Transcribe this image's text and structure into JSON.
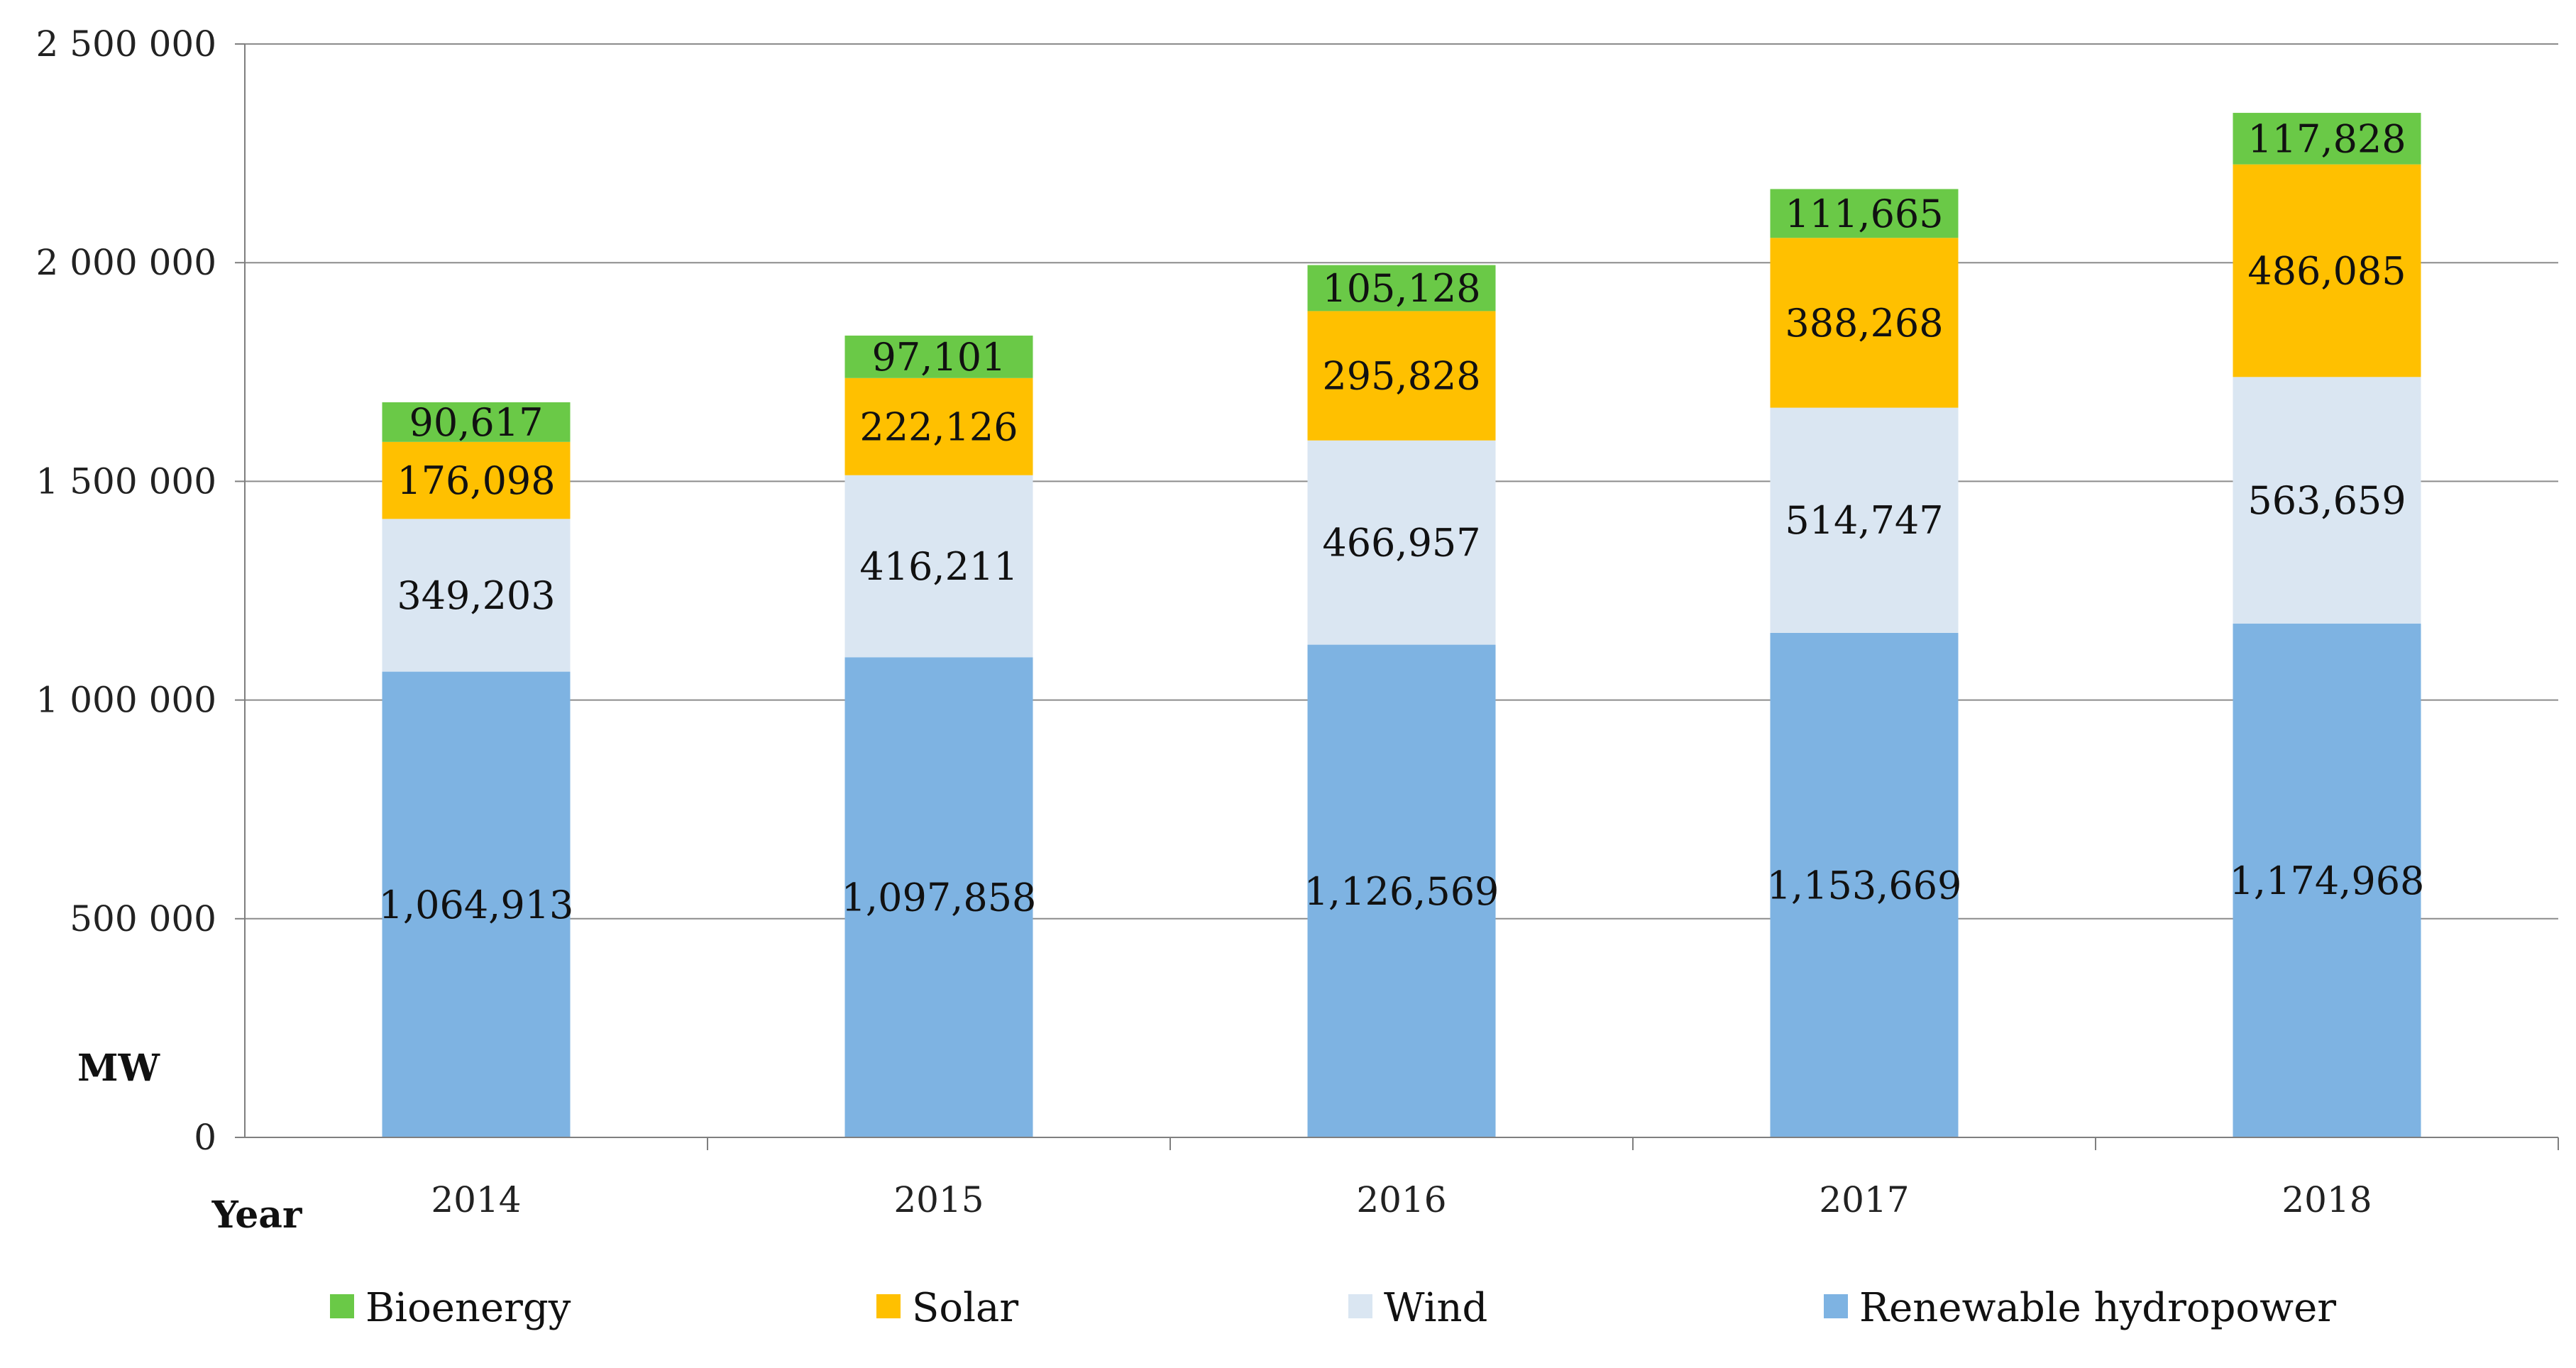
{
  "chart_data": {
    "type": "bar",
    "stacked": true,
    "title": "",
    "xlabel": "Year",
    "ylabel": "MW",
    "ylim": [
      0,
      2500000
    ],
    "yticks": [
      0,
      500000,
      1000000,
      1500000,
      2000000,
      2500000
    ],
    "ytick_labels": [
      "0",
      "500 000",
      "1 000 000",
      "1 500 000",
      "2 000 000",
      "2 500 000"
    ],
    "categories": [
      "2014",
      "2015",
      "2016",
      "2017",
      "2018"
    ],
    "series": [
      {
        "name": "Renewable hydropower",
        "color": "#7EB3E2",
        "values": [
          1064913,
          1097858,
          1126569,
          1153669,
          1174968
        ],
        "labels": [
          "1,064,913",
          "1,097,858",
          "1,126,569",
          "1,153,669",
          "1,174,968"
        ]
      },
      {
        "name": "Wind",
        "color": "#DAE6F2",
        "values": [
          349203,
          416211,
          466957,
          514747,
          563659
        ],
        "labels": [
          "349,203",
          "416,211",
          "466,957",
          "514,747",
          "563,659"
        ]
      },
      {
        "name": "Solar",
        "color": "#FFC000",
        "values": [
          176098,
          222126,
          295828,
          388268,
          486085
        ],
        "labels": [
          "176,098",
          "222,126",
          "295,828",
          "388,268",
          "486,085"
        ]
      },
      {
        "name": "Bioenergy",
        "color": "#6AC947",
        "values": [
          90617,
          97101,
          105128,
          111665,
          117828
        ],
        "labels": [
          "90,617",
          "97,101",
          "105,128",
          "111,665",
          "117,828"
        ]
      }
    ],
    "legend": {
      "position": "bottom",
      "order": [
        "Bioenergy",
        "Solar",
        "Wind",
        "Renewable hydropower"
      ]
    },
    "grid": true
  }
}
